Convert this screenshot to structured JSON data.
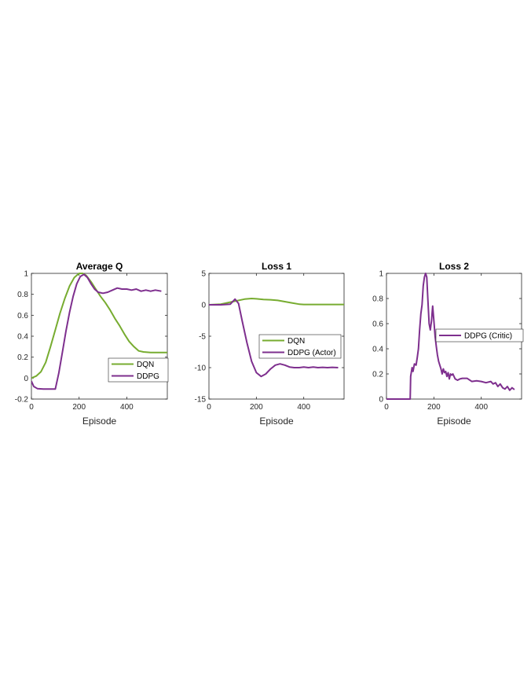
{
  "chart_data": [
    {
      "type": "line",
      "title": "Average Q",
      "xlabel": "Episode",
      "ylabel": "",
      "xlim": [
        0,
        570
      ],
      "ylim": [
        -0.2,
        1
      ],
      "xticks": [
        0,
        200,
        400
      ],
      "xtick_labels": [
        "0",
        "200",
        "400"
      ],
      "yticks": [
        -0.2,
        0,
        0.2,
        0.4,
        0.6,
        0.8,
        1
      ],
      "ytick_labels": [
        "-0.2",
        "0",
        "0.2",
        "0.4",
        "0.6",
        "0.8",
        "1"
      ],
      "legend_position": "center-right",
      "series": [
        {
          "name": "DQN",
          "color": "#77ac30",
          "points": [
            [
              0,
              0.0
            ],
            [
              20,
              0.02
            ],
            [
              40,
              0.06
            ],
            [
              60,
              0.15
            ],
            [
              80,
              0.3
            ],
            [
              100,
              0.46
            ],
            [
              120,
              0.62
            ],
            [
              140,
              0.76
            ],
            [
              160,
              0.88
            ],
            [
              180,
              0.96
            ],
            [
              200,
              1.0
            ],
            [
              215,
              1.0
            ],
            [
              230,
              0.98
            ],
            [
              250,
              0.92
            ],
            [
              270,
              0.85
            ],
            [
              290,
              0.78
            ],
            [
              310,
              0.72
            ],
            [
              330,
              0.65
            ],
            [
              350,
              0.57
            ],
            [
              370,
              0.5
            ],
            [
              390,
              0.42
            ],
            [
              410,
              0.35
            ],
            [
              430,
              0.3
            ],
            [
              450,
              0.26
            ],
            [
              470,
              0.25
            ],
            [
              500,
              0.245
            ],
            [
              530,
              0.245
            ],
            [
              570,
              0.245
            ]
          ]
        },
        {
          "name": "DDPG",
          "color": "#7e2f8e",
          "points": [
            [
              0,
              -0.03
            ],
            [
              10,
              -0.08
            ],
            [
              25,
              -0.1
            ],
            [
              50,
              -0.105
            ],
            [
              75,
              -0.105
            ],
            [
              100,
              -0.105
            ],
            [
              115,
              0.05
            ],
            [
              130,
              0.25
            ],
            [
              145,
              0.45
            ],
            [
              160,
              0.63
            ],
            [
              175,
              0.78
            ],
            [
              190,
              0.9
            ],
            [
              205,
              0.97
            ],
            [
              220,
              0.99
            ],
            [
              235,
              0.96
            ],
            [
              250,
              0.9
            ],
            [
              265,
              0.85
            ],
            [
              280,
              0.82
            ],
            [
              300,
              0.81
            ],
            [
              320,
              0.82
            ],
            [
              340,
              0.84
            ],
            [
              360,
              0.86
            ],
            [
              380,
              0.85
            ],
            [
              400,
              0.85
            ],
            [
              420,
              0.84
            ],
            [
              440,
              0.85
            ],
            [
              460,
              0.83
            ],
            [
              480,
              0.84
            ],
            [
              500,
              0.83
            ],
            [
              520,
              0.84
            ],
            [
              545,
              0.83
            ]
          ]
        }
      ]
    },
    {
      "type": "line",
      "title": "Loss 1",
      "xlabel": "Episode",
      "ylabel": "",
      "xlim": [
        0,
        570
      ],
      "ylim": [
        -15,
        5
      ],
      "xticks": [
        0,
        200,
        400
      ],
      "xtick_labels": [
        "0",
        "200",
        "400"
      ],
      "yticks": [
        -15,
        -10,
        -5,
        0,
        5
      ],
      "ytick_labels": [
        "-15",
        "-10",
        "-5",
        "0",
        "5"
      ],
      "legend_position": "center-right",
      "series": [
        {
          "name": "DQN",
          "color": "#77ac30",
          "points": [
            [
              0,
              0.0
            ],
            [
              50,
              0.1
            ],
            [
              100,
              0.5
            ],
            [
              150,
              0.9
            ],
            [
              180,
              1.0
            ],
            [
              200,
              0.95
            ],
            [
              230,
              0.85
            ],
            [
              260,
              0.8
            ],
            [
              290,
              0.7
            ],
            [
              320,
              0.5
            ],
            [
              350,
              0.3
            ],
            [
              380,
              0.1
            ],
            [
              400,
              0.05
            ],
            [
              450,
              0.05
            ],
            [
              500,
              0.05
            ],
            [
              570,
              0.05
            ]
          ]
        },
        {
          "name": "DDPG (Actor)",
          "color": "#7e2f8e",
          "points": [
            [
              0,
              0.0
            ],
            [
              50,
              0.0
            ],
            [
              90,
              0.1
            ],
            [
              110,
              0.9
            ],
            [
              125,
              0.2
            ],
            [
              140,
              -2.5
            ],
            [
              160,
              -6.0
            ],
            [
              180,
              -9.0
            ],
            [
              200,
              -10.8
            ],
            [
              220,
              -11.4
            ],
            [
              240,
              -11.0
            ],
            [
              260,
              -10.2
            ],
            [
              280,
              -9.6
            ],
            [
              300,
              -9.4
            ],
            [
              320,
              -9.6
            ],
            [
              340,
              -9.9
            ],
            [
              360,
              -10.0
            ],
            [
              380,
              -10.0
            ],
            [
              400,
              -9.9
            ],
            [
              420,
              -10.0
            ],
            [
              440,
              -9.9
            ],
            [
              460,
              -10.0
            ],
            [
              480,
              -9.95
            ],
            [
              500,
              -10.0
            ],
            [
              520,
              -9.95
            ],
            [
              545,
              -10.0
            ]
          ]
        }
      ]
    },
    {
      "type": "line",
      "title": "Loss 2",
      "xlabel": "Episode",
      "ylabel": "",
      "xlim": [
        0,
        570
      ],
      "ylim": [
        0,
        1
      ],
      "xticks": [
        0,
        200,
        400
      ],
      "xtick_labels": [
        "0",
        "200",
        "400"
      ],
      "yticks": [
        0,
        0.2,
        0.4,
        0.6,
        0.8,
        1
      ],
      "ytick_labels": [
        "0",
        "0.2",
        "0.4",
        "0.6",
        "0.8",
        "1"
      ],
      "legend_position": "center-right",
      "series": [
        {
          "name": "DDPG (Critic)",
          "color": "#7e2f8e",
          "points": [
            [
              0,
              0.0
            ],
            [
              50,
              0.0
            ],
            [
              100,
              0.0
            ],
            [
              102,
              0.18
            ],
            [
              108,
              0.25
            ],
            [
              112,
              0.22
            ],
            [
              118,
              0.28
            ],
            [
              125,
              0.27
            ],
            [
              130,
              0.33
            ],
            [
              135,
              0.4
            ],
            [
              140,
              0.55
            ],
            [
              145,
              0.68
            ],
            [
              150,
              0.75
            ],
            [
              155,
              0.9
            ],
            [
              160,
              0.97
            ],
            [
              165,
              1.0
            ],
            [
              170,
              0.97
            ],
            [
              175,
              0.78
            ],
            [
              180,
              0.6
            ],
            [
              185,
              0.55
            ],
            [
              190,
              0.62
            ],
            [
              195,
              0.74
            ],
            [
              200,
              0.62
            ],
            [
              205,
              0.5
            ],
            [
              210,
              0.42
            ],
            [
              215,
              0.35
            ],
            [
              220,
              0.3
            ],
            [
              225,
              0.27
            ],
            [
              230,
              0.24
            ],
            [
              235,
              0.2
            ],
            [
              240,
              0.24
            ],
            [
              245,
              0.21
            ],
            [
              250,
              0.22
            ],
            [
              255,
              0.18
            ],
            [
              260,
              0.21
            ],
            [
              265,
              0.16
            ],
            [
              270,
              0.2
            ],
            [
              275,
              0.19
            ],
            [
              280,
              0.2
            ],
            [
              290,
              0.16
            ],
            [
              300,
              0.15
            ],
            [
              310,
              0.16
            ],
            [
              320,
              0.165
            ],
            [
              340,
              0.165
            ],
            [
              360,
              0.14
            ],
            [
              380,
              0.145
            ],
            [
              400,
              0.14
            ],
            [
              420,
              0.13
            ],
            [
              440,
              0.14
            ],
            [
              450,
              0.12
            ],
            [
              460,
              0.13
            ],
            [
              470,
              0.1
            ],
            [
              480,
              0.12
            ],
            [
              490,
              0.09
            ],
            [
              500,
              0.08
            ],
            [
              510,
              0.1
            ],
            [
              520,
              0.07
            ],
            [
              530,
              0.09
            ],
            [
              540,
              0.075
            ]
          ]
        }
      ]
    }
  ]
}
